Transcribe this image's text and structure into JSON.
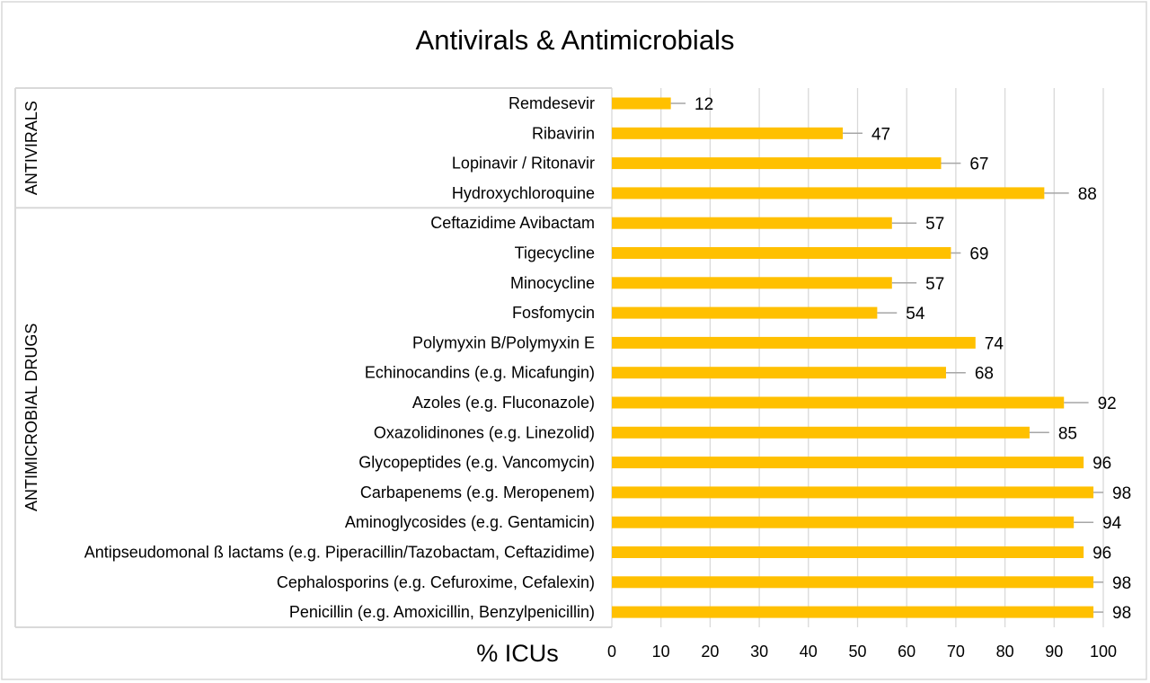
{
  "chart_data": {
    "type": "bar",
    "orientation": "horizontal",
    "title": "Antivirals & Antimicrobials",
    "xlabel": "% ICUs",
    "xlim": [
      0,
      100
    ],
    "xticks": [
      "0",
      "10",
      "20",
      "30",
      "40",
      "50",
      "60",
      "70",
      "80",
      "90",
      "100"
    ],
    "grid": true,
    "error_bars": true,
    "colors": {
      "bar": "#FFC000",
      "grid": "#D9D9D9",
      "error": "#A6A6A6"
    },
    "groups": [
      {
        "name": "ANTIVIRALS",
        "start": 0,
        "count": 4
      },
      {
        "name": "ANTIMICROBIAL DRUGS",
        "start": 4,
        "count": 14
      }
    ],
    "categories": [
      "Remdesevir",
      "Ribavirin",
      "Lopinavir / Ritonavir",
      "Hydroxychloroquine",
      "Ceftazidime Avibactam",
      "Tigecycline",
      "Minocycline",
      "Fosfomycin",
      "Polymyxin B/Polymyxin E",
      "Echinocandins (e.g. Micafungin)",
      "Azoles (e.g. Fluconazole)",
      "Oxazolidinones (e.g. Linezolid)",
      "Glycopeptides (e.g. Vancomycin)",
      "Carbapenems (e.g. Meropenem)",
      "Aminoglycosides (e.g. Gentamicin)",
      "Antipseudomonal ß lactams (e.g. Piperacillin/Tazobactam, Ceftazidime)",
      "Cephalosporins (e.g. Cefuroxime, Cefalexin)",
      "Penicillin (e.g. Amoxicillin, Benzylpenicillin)"
    ],
    "values": [
      12,
      47,
      67,
      88,
      57,
      69,
      57,
      54,
      74,
      68,
      92,
      85,
      96,
      98,
      94,
      96,
      98,
      98
    ],
    "value_labels": [
      "12",
      "47",
      "67",
      "88",
      "57",
      "69",
      "57",
      "54",
      "74",
      "68",
      "92",
      "85",
      "96",
      "98",
      "94",
      "96",
      "98",
      "98"
    ],
    "error_upper": [
      15,
      51,
      71,
      93,
      62,
      71,
      62,
      58,
      74,
      72,
      97,
      89,
      96,
      100,
      98,
      96,
      100,
      100
    ]
  }
}
